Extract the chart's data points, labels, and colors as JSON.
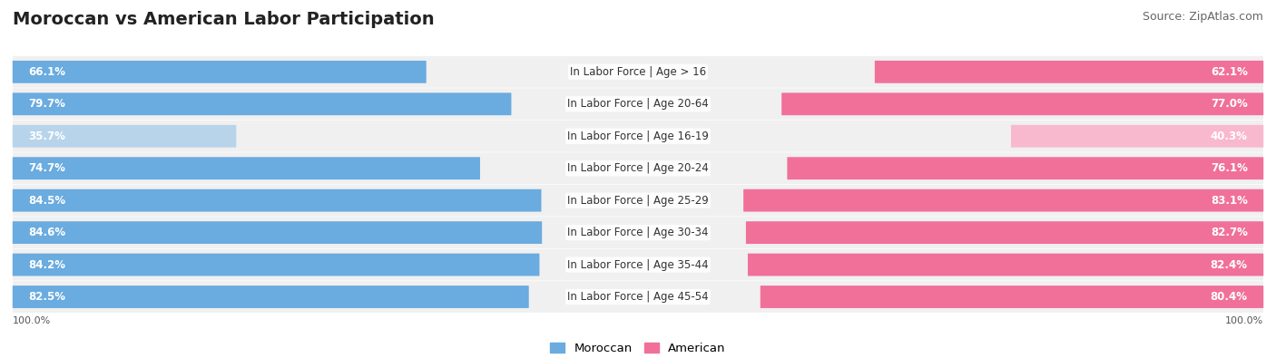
{
  "title": "Moroccan vs American Labor Participation",
  "source": "Source: ZipAtlas.com",
  "categories": [
    "In Labor Force | Age > 16",
    "In Labor Force | Age 20-64",
    "In Labor Force | Age 16-19",
    "In Labor Force | Age 20-24",
    "In Labor Force | Age 25-29",
    "In Labor Force | Age 30-34",
    "In Labor Force | Age 35-44",
    "In Labor Force | Age 45-54"
  ],
  "moroccan_values": [
    66.1,
    79.7,
    35.7,
    74.7,
    84.5,
    84.6,
    84.2,
    82.5
  ],
  "american_values": [
    62.1,
    77.0,
    40.3,
    76.1,
    83.1,
    82.7,
    82.4,
    80.4
  ],
  "moroccan_color": "#6aabe0",
  "moroccan_light_color": "#b8d4ea",
  "american_color": "#f0709a",
  "american_light_color": "#f8b8ce",
  "row_bg_even": "#f2f2f2",
  "row_bg_odd": "#e8e8e8",
  "max_value": 100.0,
  "legend_moroccan": "Moroccan",
  "legend_american": "American",
  "title_fontsize": 14,
  "source_fontsize": 9,
  "cat_fontsize": 8.5,
  "value_fontsize": 8.5,
  "bottom_label": "100.0%"
}
